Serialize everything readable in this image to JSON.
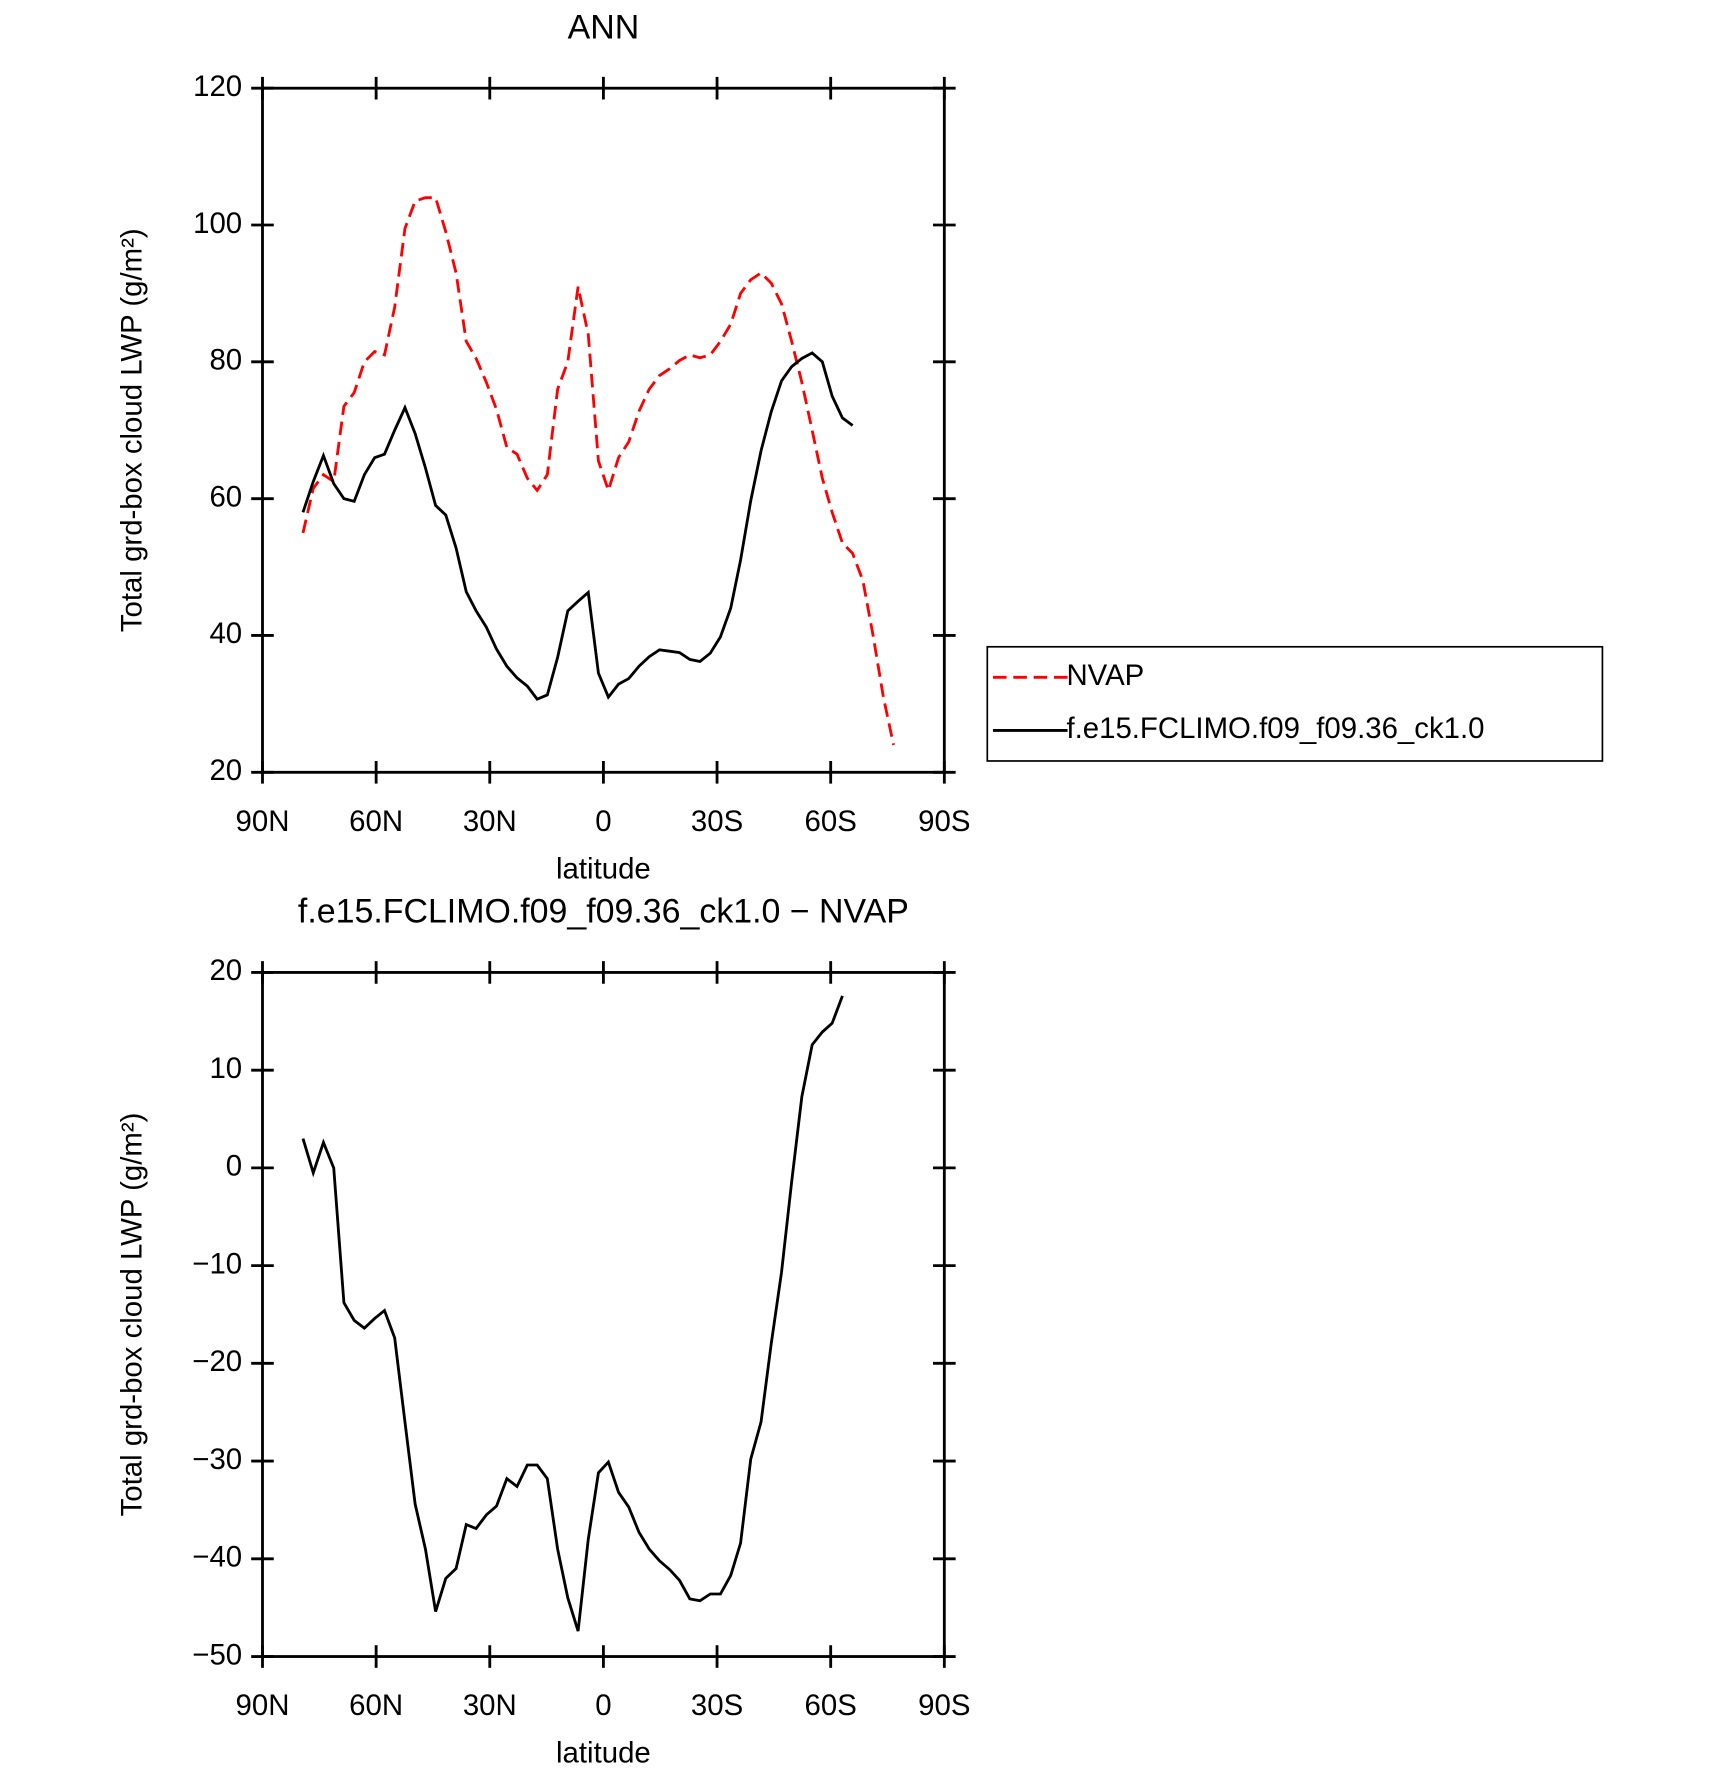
{
  "chart_data": [
    {
      "type": "line",
      "title": "ANN",
      "x_label": "latitude",
      "y_label": "Total grd-box cloud LWP (g/m²)",
      "x": [
        79.3,
        76.6,
        73.9,
        71.2,
        68.5,
        65.8,
        63.1,
        60.4,
        57.8,
        55.1,
        52.4,
        49.7,
        47.0,
        44.3,
        41.6,
        38.9,
        36.2,
        33.6,
        30.9,
        28.2,
        25.5,
        22.8,
        20.1,
        17.5,
        14.8,
        12.1,
        9.4,
        6.7,
        4.0,
        1.3,
        -1.3,
        -4.0,
        -6.7,
        -9.4,
        -12.1,
        -14.8,
        -17.5,
        -20.1,
        -22.8,
        -25.5,
        -28.2,
        -30.9,
        -33.6,
        -36.2,
        -38.9,
        -41.6,
        -44.3,
        -47.0,
        -49.7,
        -52.4,
        -55.1,
        -57.8,
        -60.4,
        -63.1,
        -65.8,
        -68.5,
        -71.2,
        -73.9,
        -76.6
      ],
      "series": [
        {
          "name": "NVAP",
          "color": "#ff0000",
          "line_style": "dashed",
          "values": [
            55,
            61.5,
            63.5,
            62.5,
            73.5,
            75.5,
            80,
            81.5,
            81,
            88,
            99.5,
            103.5,
            104,
            104,
            99,
            93,
            83,
            80.5,
            77,
            73,
            67.5,
            66.5,
            63,
            61.2,
            63.5,
            76,
            80,
            91,
            84,
            65.5,
            61.2,
            66,
            68.3,
            72.8,
            76,
            78,
            79,
            80.2,
            81,
            80.6,
            81,
            83,
            85.5,
            90,
            92,
            93,
            91.5,
            88.5,
            83,
            77,
            70,
            63,
            58,
            53.5,
            52,
            48,
            40,
            31,
            24
          ]
        },
        {
          "name": "f.e15.FCLIMO.f09_f09.36_ck1.0",
          "color": "#000000",
          "line_style": "solid",
          "values": [
            58,
            62.5,
            66.3,
            62.2,
            60,
            59.6,
            63.5,
            66,
            66.5,
            70,
            73.3,
            69.5,
            64.5,
            59,
            57.6,
            52.8,
            46.4,
            43.6,
            41.2,
            38,
            35.5,
            33.8,
            32.6,
            30.7,
            31.3,
            36.8,
            43.6,
            45,
            46.3,
            34.5,
            31,
            32.9,
            33.7,
            35.5,
            36.9,
            37.9,
            37.7,
            37.5,
            36.5,
            36.2,
            37.4,
            39.8,
            44,
            51,
            59.7,
            67,
            72.7,
            77.2,
            79.3,
            80.5,
            81.3,
            80,
            75,
            71.8,
            70.7,
            null,
            null,
            null,
            null
          ]
        }
      ],
      "xlim": [
        90,
        -90
      ],
      "xticks": [
        {
          "value": 90,
          "label": "90N"
        },
        {
          "value": 60,
          "label": "60N"
        },
        {
          "value": 30,
          "label": "30N"
        },
        0,
        {
          "value": -30,
          "label": "30S"
        },
        {
          "value": -60,
          "label": "60S"
        },
        {
          "value": -90,
          "label": "90S"
        }
      ],
      "ylim": [
        20,
        120
      ],
      "yticks": [
        20,
        40,
        60,
        80,
        100,
        120
      ],
      "legend": "right"
    },
    {
      "type": "line",
      "title": "f.e15.FCLIMO.f09_f09.36_ck1.0 − NVAP",
      "x_label": "latitude",
      "y_label": "Total grd-box cloud LWP (g/m²)",
      "x": [
        79.3,
        76.6,
        73.9,
        71.2,
        68.5,
        65.8,
        63.1,
        60.4,
        57.8,
        55.1,
        52.4,
        49.7,
        47.0,
        44.3,
        41.6,
        38.9,
        36.2,
        33.6,
        30.9,
        28.2,
        25.5,
        22.8,
        20.1,
        17.5,
        14.8,
        12.1,
        9.4,
        6.7,
        4.0,
        1.3,
        -1.3,
        -4.0,
        -6.7,
        -9.4,
        -12.1,
        -14.8,
        -17.5,
        -20.1,
        -22.8,
        -25.5,
        -28.2,
        -30.9,
        -33.6,
        -36.2,
        -38.9,
        -41.6,
        -44.3,
        -47.0,
        -49.7,
        -52.4,
        -55.1,
        -57.8,
        -60.4,
        -63.1
      ],
      "series": [
        {
          "color": "#000000",
          "line_style": "solid",
          "values": [
            3,
            -0.5,
            2.6,
            0,
            -13.8,
            -15.6,
            -16.4,
            -15.4,
            -14.6,
            -17.4,
            -26,
            -34.4,
            -39,
            -45.4,
            -42,
            -41,
            -36.5,
            -36.9,
            -35.5,
            -34.6,
            -31.8,
            -32.6,
            -30.4,
            -30.4,
            -31.8,
            -39,
            -44,
            -47.4,
            -38,
            -31.2,
            -30.1,
            -33.2,
            -34.7,
            -37.3,
            -39,
            -40.2,
            -41.1,
            -42.2,
            -44.1,
            -44.3,
            -43.6,
            -43.6,
            -41.7,
            -38.4,
            -29.8,
            -26,
            -18,
            -10.7,
            -1.4,
            7.3,
            12.6,
            13.9,
            14.8,
            17.6
          ]
        }
      ],
      "xlim": [
        90,
        -90
      ],
      "xticks": [
        {
          "value": 90,
          "label": "90N"
        },
        {
          "value": 60,
          "label": "60N"
        },
        {
          "value": 30,
          "label": "30N"
        },
        0,
        {
          "value": -30,
          "label": "30S"
        },
        {
          "value": -60,
          "label": "60S"
        },
        {
          "value": -90,
          "label": "90S"
        }
      ],
      "ylim": [
        -50,
        20
      ],
      "yticks": [
        {
          "value": -50,
          "label": "−50"
        },
        {
          "value": -40,
          "label": "−40"
        },
        {
          "value": -30,
          "label": "−30"
        },
        {
          "value": -20,
          "label": "−20"
        },
        {
          "value": -10,
          "label": "−10"
        },
        0,
        10,
        20
      ]
    }
  ]
}
